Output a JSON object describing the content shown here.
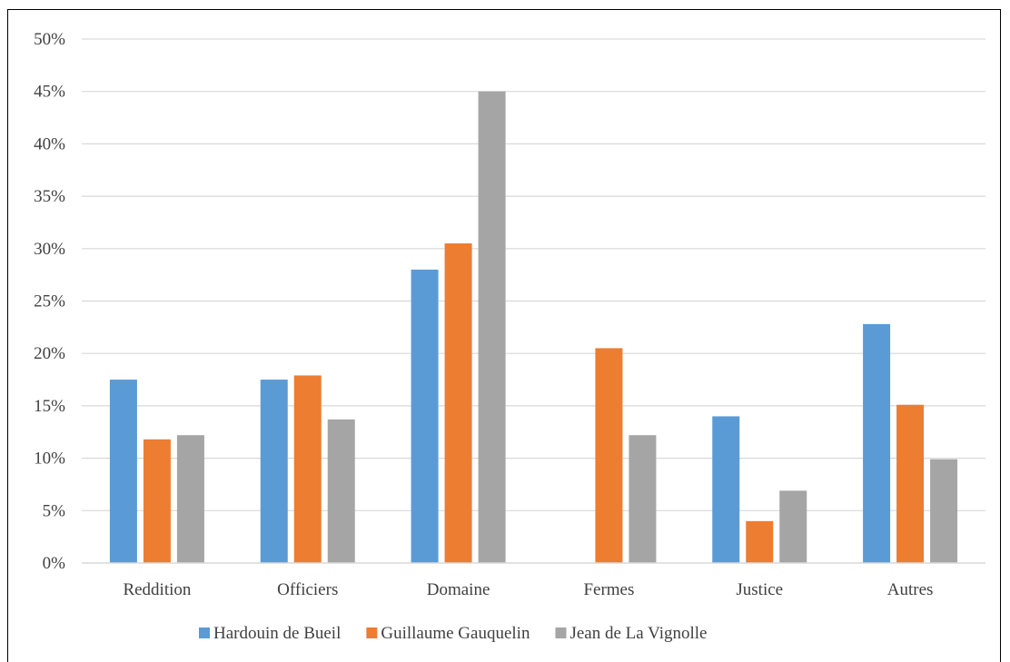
{
  "chart_data": {
    "type": "bar",
    "title": "",
    "xlabel": "",
    "ylabel": "",
    "ylim": [
      0,
      50
    ],
    "y_ticks": [
      "0%",
      "5%",
      "10%",
      "15%",
      "20%",
      "25%",
      "30%",
      "35%",
      "40%",
      "45%",
      "50%"
    ],
    "y_unit": "%",
    "grid": true,
    "legend_position": "bottom",
    "categories": [
      "Reddition",
      "Officiers",
      "Domaine",
      "Fermes",
      "Justice",
      "Autres"
    ],
    "series": [
      {
        "name": "Hardouin de Bueil",
        "color": "#5b9bd5",
        "values": [
          17.5,
          17.5,
          28.0,
          0.0,
          14.0,
          22.8
        ]
      },
      {
        "name": "Guillaume Gauquelin",
        "color": "#ed7d31",
        "values": [
          11.8,
          17.9,
          30.5,
          20.5,
          4.0,
          15.1
        ]
      },
      {
        "name": "Jean de La Vignolle",
        "color": "#a5a5a5",
        "values": [
          12.2,
          13.7,
          45.0,
          12.2,
          6.9,
          9.9
        ]
      }
    ]
  }
}
